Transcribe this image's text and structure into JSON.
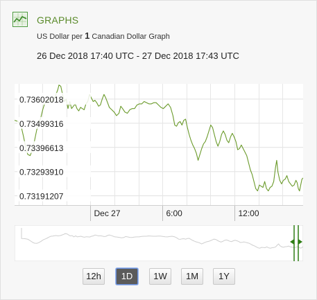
{
  "header": {
    "title": "GRAPHS",
    "subtitle_pre": "US Dollar per",
    "subtitle_num": "1",
    "subtitle_post": "Canadian Dollar Graph",
    "range": "26 Dec 2018 17:40 UTC - 27 Dec 2018 17:43 UTC"
  },
  "colors": {
    "line": "#6a9a2a",
    "title": "#5a8a2a",
    "nav_handle": "#2e7d14"
  },
  "range_buttons": [
    {
      "label": "12h",
      "active": false
    },
    {
      "label": "1D",
      "active": true
    },
    {
      "label": "1W",
      "active": false
    },
    {
      "label": "1M",
      "active": false
    },
    {
      "label": "1Y",
      "active": false
    }
  ],
  "chart_data": {
    "type": "line",
    "title": "",
    "xlabel": "",
    "ylabel": "",
    "x_unit": "hours from 26 Dec 2018 17:40 UTC",
    "ylim": [
      0.7314,
      0.73655
    ],
    "yticks": [
      0.73191207,
      0.7329391,
      0.73396613,
      0.73499316,
      0.73602018
    ],
    "ytick_labels": [
      "0.73191207",
      "0.73293910",
      "0.73396613",
      "0.73499316",
      "0.73602018"
    ],
    "xticks": [
      {
        "x": 6.33,
        "label": "Dec 27"
      },
      {
        "x": 12.33,
        "label": "6:00"
      },
      {
        "x": 18.33,
        "label": "12:00"
      }
    ],
    "xlim": [
      0,
      24.05
    ],
    "grid": true,
    "series": [
      {
        "points": [
          [
            0.0,
            0.735
          ],
          [
            0.3,
            0.73495
          ],
          [
            0.55,
            0.73475
          ],
          [
            0.75,
            0.7343
          ],
          [
            0.95,
            0.7338
          ],
          [
            1.1,
            0.73355
          ],
          [
            1.3,
            0.7335
          ],
          [
            1.45,
            0.7337
          ],
          [
            1.65,
            0.7341
          ],
          [
            1.85,
            0.7346
          ],
          [
            2.05,
            0.7349
          ],
          [
            2.2,
            0.73515
          ],
          [
            2.35,
            0.73545
          ],
          [
            2.5,
            0.7357
          ],
          [
            2.65,
            0.73575
          ],
          [
            2.8,
            0.73585
          ],
          [
            2.95,
            0.7359
          ],
          [
            3.1,
            0.7358
          ],
          [
            3.3,
            0.7359
          ],
          [
            3.45,
            0.7361
          ],
          [
            3.6,
            0.7363
          ],
          [
            3.7,
            0.7365
          ],
          [
            3.85,
            0.73645
          ],
          [
            4.0,
            0.7361
          ],
          [
            4.15,
            0.7358
          ],
          [
            4.3,
            0.7359
          ],
          [
            4.45,
            0.7355
          ],
          [
            4.6,
            0.7358
          ],
          [
            4.75,
            0.7355
          ],
          [
            4.9,
            0.7356
          ],
          [
            5.05,
            0.7357
          ],
          [
            5.2,
            0.7355
          ],
          [
            5.35,
            0.7354
          ],
          [
            5.5,
            0.73555
          ],
          [
            5.65,
            0.7355
          ],
          [
            5.8,
            0.73545
          ],
          [
            5.95,
            0.7357
          ],
          [
            6.1,
            0.7358
          ],
          [
            6.25,
            0.7361
          ],
          [
            6.4,
            0.73595
          ],
          [
            6.55,
            0.7358
          ],
          [
            6.7,
            0.73585
          ],
          [
            6.85,
            0.73575
          ],
          [
            7.0,
            0.7356
          ],
          [
            7.15,
            0.73565
          ],
          [
            7.3,
            0.7359
          ],
          [
            7.45,
            0.7361
          ],
          [
            7.6,
            0.73595
          ],
          [
            7.75,
            0.73575
          ],
          [
            7.9,
            0.73555
          ],
          [
            8.1,
            0.73545
          ],
          [
            8.3,
            0.73535
          ],
          [
            8.5,
            0.7352
          ],
          [
            8.7,
            0.7353
          ],
          [
            8.85,
            0.7356
          ],
          [
            9.0,
            0.7355
          ],
          [
            9.2,
            0.73535
          ],
          [
            9.4,
            0.7353
          ],
          [
            9.6,
            0.73545
          ],
          [
            9.8,
            0.7355
          ],
          [
            10.0,
            0.7355
          ],
          [
            10.2,
            0.73565
          ],
          [
            10.4,
            0.7357
          ],
          [
            10.6,
            0.7357
          ],
          [
            10.8,
            0.7358
          ],
          [
            11.0,
            0.73575
          ],
          [
            11.2,
            0.7357
          ],
          [
            11.4,
            0.7357
          ],
          [
            11.6,
            0.73575
          ],
          [
            11.8,
            0.73575
          ],
          [
            12.0,
            0.73565
          ],
          [
            12.2,
            0.73555
          ],
          [
            12.4,
            0.7355
          ],
          [
            12.6,
            0.7356
          ],
          [
            12.8,
            0.7357
          ],
          [
            13.0,
            0.73555
          ],
          [
            13.2,
            0.7352
          ],
          [
            13.35,
            0.7348
          ],
          [
            13.5,
            0.73475
          ],
          [
            13.65,
            0.7349
          ],
          [
            13.8,
            0.73495
          ],
          [
            13.95,
            0.7348
          ],
          [
            14.1,
            0.735
          ],
          [
            14.25,
            0.73505
          ],
          [
            14.4,
            0.7347
          ],
          [
            14.55,
            0.7344
          ],
          [
            14.7,
            0.73415
          ],
          [
            14.85,
            0.73395
          ],
          [
            15.0,
            0.7338
          ],
          [
            15.15,
            0.7336
          ],
          [
            15.3,
            0.7333
          ],
          [
            15.45,
            0.73355
          ],
          [
            15.6,
            0.7338
          ],
          [
            15.75,
            0.734
          ],
          [
            15.9,
            0.7341
          ],
          [
            16.05,
            0.7343
          ],
          [
            16.2,
            0.73455
          ],
          [
            16.35,
            0.7348
          ],
          [
            16.5,
            0.7347
          ],
          [
            16.65,
            0.7344
          ],
          [
            16.8,
            0.7341
          ],
          [
            16.95,
            0.7339
          ],
          [
            17.1,
            0.7341
          ],
          [
            17.25,
            0.7344
          ],
          [
            17.4,
            0.73455
          ],
          [
            17.55,
            0.7344
          ],
          [
            17.7,
            0.73415
          ],
          [
            17.85,
            0.73405
          ],
          [
            18.0,
            0.7343
          ],
          [
            18.15,
            0.73445
          ],
          [
            18.3,
            0.7343
          ],
          [
            18.45,
            0.7341
          ],
          [
            18.6,
            0.73375
          ],
          [
            18.75,
            0.7338
          ],
          [
            18.9,
            0.73395
          ],
          [
            19.05,
            0.7338
          ],
          [
            19.2,
            0.73365
          ],
          [
            19.35,
            0.7335
          ],
          [
            19.5,
            0.7332
          ],
          [
            19.65,
            0.7329
          ],
          [
            19.8,
            0.7327
          ],
          [
            19.95,
            0.7324
          ],
          [
            20.1,
            0.7321
          ],
          [
            20.25,
            0.732
          ],
          [
            20.4,
            0.73225
          ],
          [
            20.55,
            0.7322
          ],
          [
            20.7,
            0.73215
          ],
          [
            20.85,
            0.7324
          ],
          [
            21.0,
            0.7321
          ],
          [
            21.15,
            0.732
          ],
          [
            21.3,
            0.73215
          ],
          [
            21.45,
            0.7322
          ],
          [
            21.6,
            0.7324
          ],
          [
            21.75,
            0.733
          ],
          [
            21.85,
            0.7333
          ],
          [
            21.95,
            0.7328
          ],
          [
            22.1,
            0.73245
          ],
          [
            22.25,
            0.7323
          ],
          [
            22.4,
            0.73245
          ],
          [
            22.55,
            0.7325
          ],
          [
            22.7,
            0.73265
          ],
          [
            22.85,
            0.7324
          ],
          [
            23.0,
            0.7323
          ],
          [
            23.15,
            0.7322
          ],
          [
            23.3,
            0.73225
          ],
          [
            23.45,
            0.73245
          ],
          [
            23.55,
            0.73235
          ],
          [
            23.65,
            0.7321
          ],
          [
            23.75,
            0.732
          ],
          [
            23.85,
            0.73225
          ],
          [
            23.95,
            0.7325
          ],
          [
            24.05,
            0.73255
          ]
        ]
      }
    ]
  }
}
